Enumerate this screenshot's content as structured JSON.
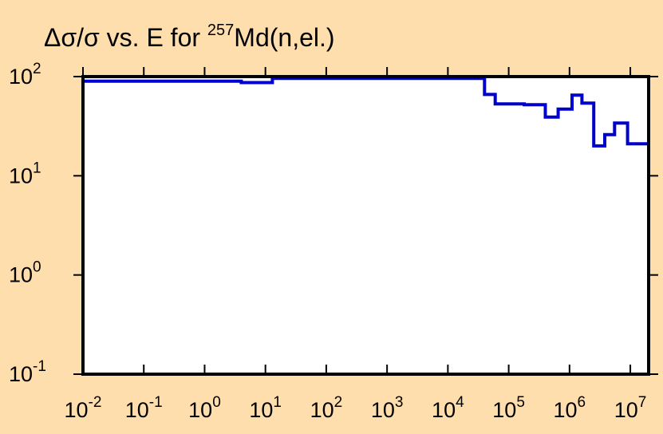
{
  "chart_data": {
    "type": "line",
    "step": true,
    "title": {
      "prefix": "Δσ/σ vs. E for ",
      "mass_number": "257",
      "suffix": "Md(n,el.)"
    },
    "xlabel": "",
    "ylabel": "",
    "x_scale": "log",
    "y_scale": "log",
    "xlim": [
      0.01,
      20000000
    ],
    "ylim": [
      0.1,
      100
    ],
    "x_ticks": [
      {
        "base": "10",
        "exp": "-2",
        "value": 0.01
      },
      {
        "base": "10",
        "exp": "-1",
        "value": 0.1
      },
      {
        "base": "10",
        "exp": "0",
        "value": 1
      },
      {
        "base": "10",
        "exp": "1",
        "value": 10
      },
      {
        "base": "10",
        "exp": "2",
        "value": 100
      },
      {
        "base": "10",
        "exp": "3",
        "value": 1000
      },
      {
        "base": "10",
        "exp": "4",
        "value": 10000
      },
      {
        "base": "10",
        "exp": "5",
        "value": 100000
      },
      {
        "base": "10",
        "exp": "6",
        "value": 1000000
      },
      {
        "base": "10",
        "exp": "7",
        "value": 10000000
      }
    ],
    "y_ticks": [
      {
        "base": "10",
        "exp": "-1",
        "value": 0.1
      },
      {
        "base": "10",
        "exp": "0",
        "value": 1
      },
      {
        "base": "10",
        "exp": "1",
        "value": 10
      },
      {
        "base": "10",
        "exp": "2",
        "value": 100
      }
    ],
    "series": [
      {
        "color": "#0000CD",
        "x": [
          0.01,
          0.6,
          4,
          13,
          25000,
          40000,
          60000,
          180000,
          400000,
          650000,
          1100000,
          1600000,
          2500000,
          3800000,
          5500000,
          9000000,
          20000000
        ],
        "y": [
          90,
          90,
          87,
          96,
          96,
          66,
          53,
          52,
          39,
          47,
          65,
          54,
          20,
          26,
          34,
          21,
          21
        ]
      }
    ],
    "grid": false,
    "legend": "none"
  },
  "colors": {
    "background": "#FFDEAD",
    "plot_area": "#FFFFFF",
    "axis": "#000000",
    "series": "#0000CD"
  }
}
